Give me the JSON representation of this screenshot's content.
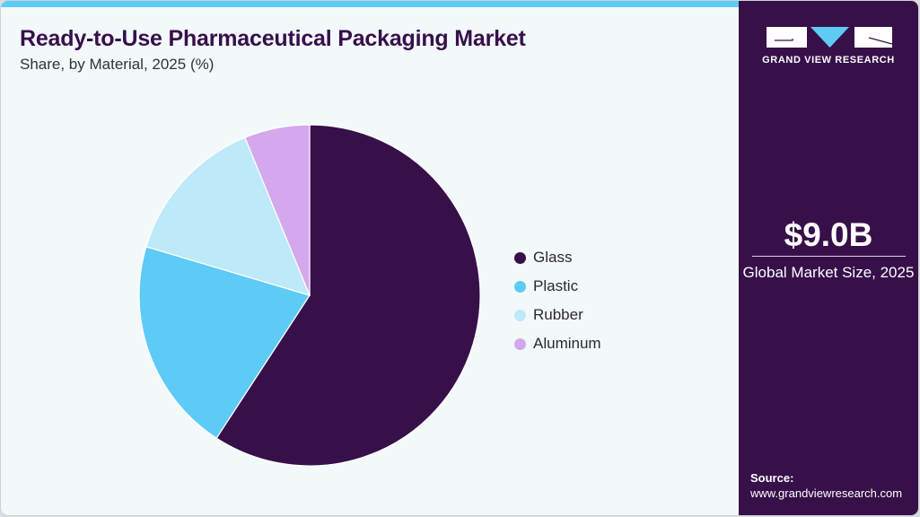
{
  "header": {
    "title": "Ready-to-Use Pharmaceutical Packaging Market",
    "subtitle": "Share, by Material, 2025 (%)"
  },
  "sidebar": {
    "logo_text": "GRAND VIEW RESEARCH",
    "market_size": "$9.0B",
    "market_size_label": "Global Market Size, 2025",
    "source_label": "Source:",
    "source_url": "www.grandviewresearch.com"
  },
  "legend": [
    {
      "label": "Glass",
      "color": "#37104a"
    },
    {
      "label": "Plastic",
      "color": "#5ecbf6"
    },
    {
      "label": "Rubber",
      "color": "#bde9f9"
    },
    {
      "label": "Aluminum",
      "color": "#d4a8ec"
    }
  ],
  "chart_data": {
    "type": "pie",
    "title": "Ready-to-Use Pharmaceutical Packaging Market",
    "subtitle": "Share, by Material, 2025 (%)",
    "categories": [
      "Glass",
      "Plastic",
      "Rubber",
      "Aluminum"
    ],
    "values": [
      59.2,
      20.4,
      14.2,
      6.2
    ],
    "colors": [
      "#37104a",
      "#5ecbf6",
      "#bde9f9",
      "#d4a8ec"
    ],
    "start_angle": "12 o'clock, clockwise",
    "legend_position": "right"
  }
}
